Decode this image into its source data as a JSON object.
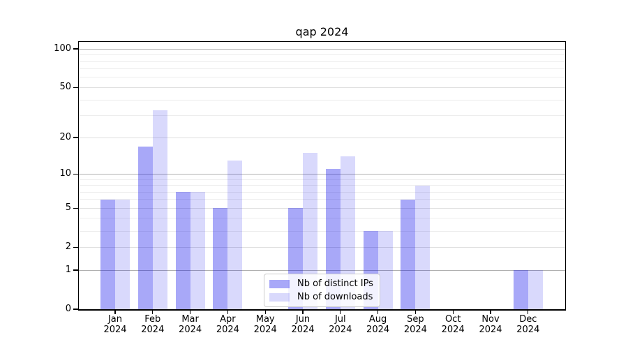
{
  "figure": {
    "title": "qap 2024"
  },
  "chart_data": {
    "type": "bar",
    "title": "qap 2024",
    "categories": [
      "Jan",
      "Feb",
      "Mar",
      "Apr",
      "May",
      "Jun",
      "Jul",
      "Aug",
      "Sep",
      "Oct",
      "Nov",
      "Dec"
    ],
    "year": "2024",
    "series": [
      {
        "key": "ips",
        "name": "Nb of distinct IPs",
        "color": "rgba(0,0,235,0.34)",
        "values": [
          6,
          17,
          7,
          5,
          0,
          5,
          11,
          3,
          6,
          0,
          0,
          1
        ]
      },
      {
        "key": "downloads",
        "name": "Nb of downloads",
        "color": "rgba(0,0,235,0.15)",
        "values": [
          6,
          33,
          7,
          13,
          0,
          15,
          14,
          3,
          8,
          0,
          0,
          1
        ]
      }
    ],
    "axes": {
      "scale": "log(1+x)",
      "yticks": [
        0,
        1,
        2,
        5,
        10,
        20,
        50,
        100
      ],
      "decade_lines": [
        1,
        10,
        100
      ],
      "minor_gridlines": [
        3,
        4,
        6,
        7,
        8,
        9,
        30,
        40,
        60,
        70,
        80,
        90
      ],
      "ylim": [
        0,
        113
      ],
      "grid": "on"
    },
    "legend": {
      "position": "lower center"
    },
    "colors": {
      "axis": "#000000",
      "grid_major": "#b0b0b0",
      "grid_minor": "#ededed",
      "legend_border": "#cccccc"
    }
  }
}
